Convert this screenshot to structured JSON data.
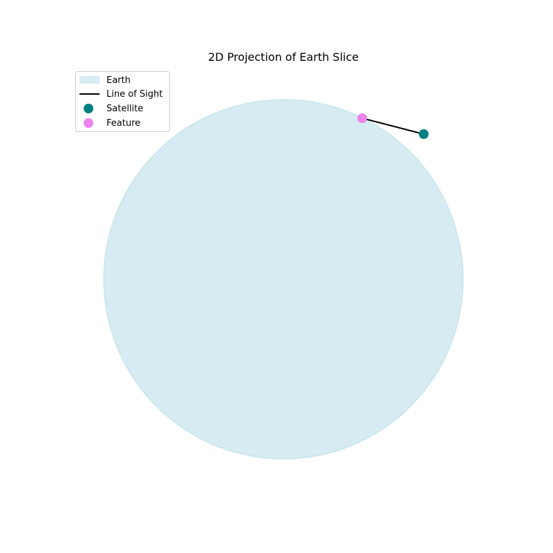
{
  "title": "2D Projection of Earth Slice",
  "colors": {
    "earth_fill": "#add8e6",
    "line_of_sight": "#000000",
    "satellite": "#008080",
    "feature": "#ee82ee"
  },
  "legend": {
    "placement": "upper-left",
    "items": [
      {
        "label": "Earth",
        "kind": "patch",
        "color": "#add8e6"
      },
      {
        "label": "Line of Sight",
        "kind": "line",
        "color": "#000000"
      },
      {
        "label": "Satellite",
        "kind": "marker",
        "color": "#008080"
      },
      {
        "label": "Feature",
        "kind": "marker",
        "color": "#ee82ee"
      }
    ]
  },
  "axes": {
    "visible": false,
    "equal_aspect": true
  }
}
